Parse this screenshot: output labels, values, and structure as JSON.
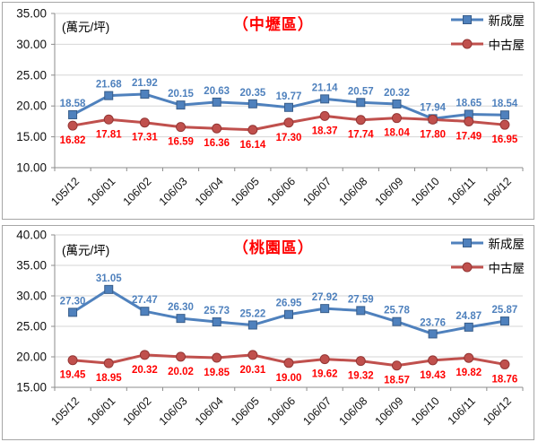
{
  "chart_data": [
    {
      "type": "line",
      "title": "（中壢區）",
      "title_color": "#FF0000",
      "unit_label": "(萬元/坪)",
      "categories": [
        "105/12",
        "106/01",
        "106/02",
        "106/03",
        "106/04",
        "106/05",
        "106/06",
        "106/07",
        "106/08",
        "106/09",
        "106/10",
        "106/11",
        "106/12"
      ],
      "series": [
        {
          "name": "新成屋",
          "color": "#4F81BD",
          "marker": "square",
          "marker_edge": "#385D8A",
          "label_color": "#4F81BD",
          "values": [
            18.58,
            21.68,
            21.92,
            20.15,
            20.63,
            20.35,
            19.77,
            21.14,
            20.57,
            20.32,
            17.94,
            18.65,
            18.54
          ]
        },
        {
          "name": "中古屋",
          "color": "#C0504D",
          "marker": "circle",
          "marker_edge": "#943634",
          "label_color": "#FF0000",
          "values": [
            16.82,
            17.81,
            17.31,
            16.59,
            16.36,
            16.14,
            17.3,
            18.37,
            17.74,
            18.04,
            17.8,
            17.49,
            16.95
          ]
        }
      ],
      "ylim": [
        10,
        35
      ],
      "ytick_step": 5,
      "grid": true,
      "legend_position": "top-right"
    },
    {
      "type": "line",
      "title": "（桃園區）",
      "title_color": "#FF0000",
      "unit_label": "(萬元/坪)",
      "categories": [
        "105/12",
        "106/01",
        "106/02",
        "106/03",
        "106/04",
        "106/05",
        "106/06",
        "106/07",
        "106/08",
        "106/09",
        "106/10",
        "106/11",
        "106/12"
      ],
      "series": [
        {
          "name": "新成屋",
          "color": "#4F81BD",
          "marker": "square",
          "marker_edge": "#385D8A",
          "label_color": "#4F81BD",
          "values": [
            27.3,
            31.05,
            27.47,
            26.3,
            25.73,
            25.22,
            26.95,
            27.92,
            27.59,
            25.78,
            23.76,
            24.87,
            25.87
          ]
        },
        {
          "name": "中古屋",
          "color": "#C0504D",
          "marker": "circle",
          "marker_edge": "#943634",
          "label_color": "#FF0000",
          "values": [
            19.45,
            18.95,
            20.32,
            20.02,
            19.85,
            20.31,
            19.0,
            19.62,
            19.32,
            18.57,
            19.43,
            19.82,
            18.76
          ]
        }
      ],
      "ylim": [
        15,
        40
      ],
      "ytick_step": 5,
      "grid": true,
      "legend_position": "top-right"
    }
  ],
  "styles": {
    "axis_color": "#8C8C8C",
    "grid_color": "#D6D6D6",
    "border_color": "#A6A6A6",
    "tick_label_color": "#111111"
  }
}
